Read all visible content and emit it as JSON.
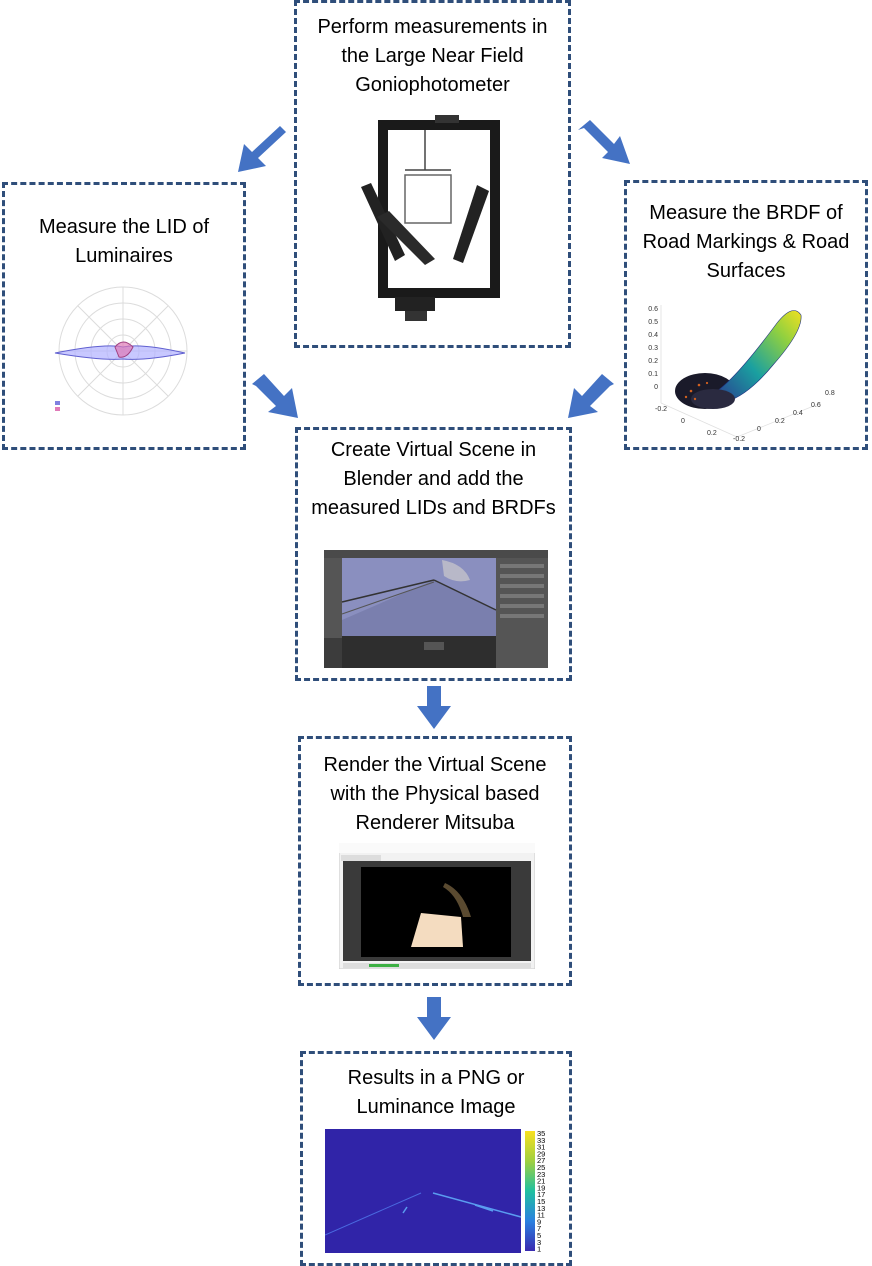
{
  "flow": {
    "goniophotometer": {
      "text": "Perform measurements in the Large Near Field Goniophotometer"
    },
    "lid": {
      "text": "Measure the LID of Luminaires"
    },
    "brdf": {
      "text": "Measure the BRDF of Road Markings & Road Surfaces"
    },
    "blender": {
      "text": "Create Virtual Scene in Blender and add the measured LIDs and BRDFs"
    },
    "mitsuba": {
      "text": "Render the Virtual Scene with the Physical based Renderer Mitsuba"
    },
    "results": {
      "text": "Results in a PNG or Luminance Image"
    }
  },
  "brdf_plot": {
    "z_ticks": [
      "0.6",
      "0.5",
      "0.4",
      "0.3",
      "0.2",
      "0.1",
      "0"
    ],
    "x_ticks": [
      "0.8",
      "0.6",
      "0.4",
      "0.2",
      "0",
      "-0.2"
    ],
    "y_ticks": [
      "-0.2",
      "0",
      "0.2"
    ]
  },
  "colorbar": {
    "ticks": [
      "35",
      "33",
      "31",
      "29",
      "27",
      "25",
      "23",
      "21",
      "19",
      "17",
      "15",
      "13",
      "11",
      "9",
      "7",
      "5",
      "3",
      "1"
    ]
  },
  "colors": {
    "border": "#2f4e7a",
    "arrow": "#4472c4"
  }
}
